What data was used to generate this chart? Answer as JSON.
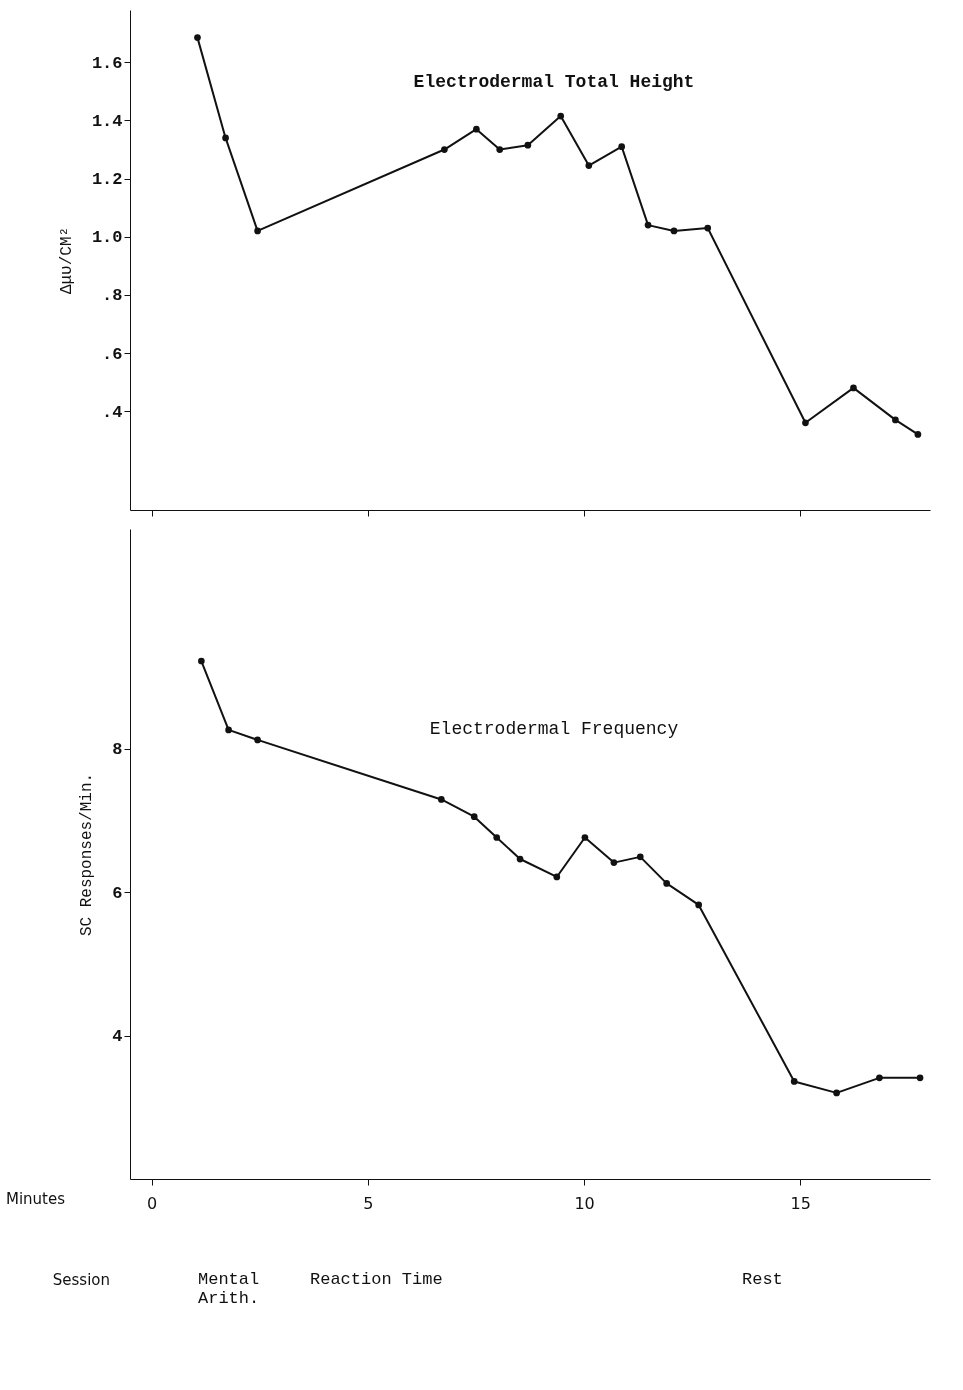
{
  "chart_data": [
    {
      "type": "line",
      "title": "Electrodermal Total Height",
      "ylabel": "Δμυ/CM²",
      "x": [
        1.06,
        1.71,
        2.45,
        6.77,
        7.51,
        8.05,
        8.7,
        9.46,
        10.11,
        10.87,
        11.48,
        12.08,
        12.86,
        15.12,
        16.23,
        17.2,
        17.72
      ],
      "series": [
        {
          "color": "#111111",
          "values": [
            1.685,
            1.34,
            1.02,
            1.3,
            1.37,
            1.3,
            1.315,
            1.415,
            1.245,
            1.31,
            1.04,
            1.02,
            1.03,
            0.36,
            0.48,
            0.37,
            0.32
          ]
        }
      ],
      "xlim": [
        -0.5,
        18.0
      ],
      "xticks": [
        {
          "value": 0,
          "label": null
        },
        {
          "value": 5,
          "label": null
        },
        {
          "value": 10,
          "label": null
        },
        {
          "value": 15,
          "label": null
        }
      ],
      "ylim": [
        0.06,
        1.78
      ],
      "yticks": [
        {
          "value": 0.4,
          "label": ".4"
        },
        {
          "value": 0.6,
          "label": ".6"
        },
        {
          "value": 0.8,
          "label": ".8"
        },
        {
          "value": 1.0,
          "label": "1.0"
        },
        {
          "value": 1.2,
          "label": "1.2"
        },
        {
          "value": 1.4,
          "label": "1.4"
        },
        {
          "value": 1.6,
          "label": "1.6"
        }
      ],
      "tick_labels": "y",
      "grid": false,
      "marker": "circle",
      "line_style": "solid"
    },
    {
      "type": "line",
      "title": "Electrodermal Frequency",
      "xlabel": "Minutes",
      "ylabel": "SC Responses/Min.",
      "x": [
        1.15,
        1.78,
        2.45,
        6.7,
        7.46,
        7.98,
        8.52,
        9.37,
        10.02,
        10.69,
        11.3,
        11.91,
        12.65,
        14.86,
        15.84,
        16.83,
        17.77
      ],
      "series": [
        {
          "color": "#111111",
          "values": [
            9.22,
            8.26,
            8.12,
            7.29,
            7.05,
            6.76,
            6.46,
            6.21,
            6.76,
            6.41,
            6.49,
            6.12,
            5.82,
            3.36,
            3.2,
            3.41,
            3.41
          ]
        }
      ],
      "xlim": [
        -0.5,
        18.0
      ],
      "xticks": [
        0,
        5,
        10,
        15
      ],
      "ylim": [
        2.0,
        11.06
      ],
      "yticks": [
        4,
        6,
        8
      ],
      "grid": false,
      "marker": "circle",
      "line_style": "solid",
      "annotations": [
        "Session",
        "Mental\nArith.",
        "Reaction Time",
        "Rest"
      ]
    }
  ]
}
